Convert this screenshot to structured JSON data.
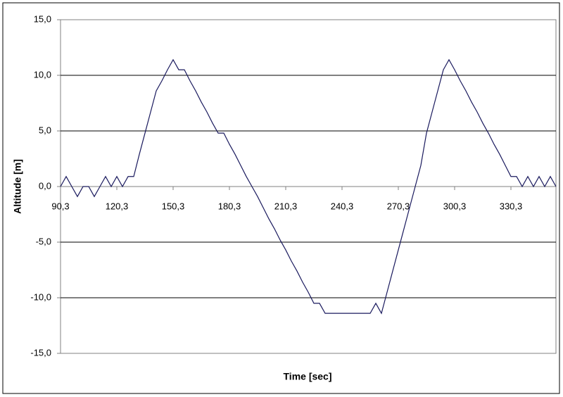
{
  "chart_data": {
    "type": "line",
    "x_label": "Time [sec]",
    "y_label": "Altitude [m]",
    "color": "#1a1a5e",
    "x": [
      90.3,
      93.3,
      96.3,
      99.3,
      102.3,
      105.3,
      108.3,
      111.3,
      114.3,
      117.3,
      120.3,
      123.3,
      126.3,
      129.3,
      132.3,
      135.3,
      138.3,
      141.3,
      144.3,
      147.3,
      150.3,
      153.3,
      156.3,
      159.3,
      162.3,
      165.3,
      168.3,
      171.3,
      174.3,
      177.3,
      180.3,
      183.3,
      186.3,
      189.3,
      192.3,
      195.3,
      198.3,
      201.3,
      204.3,
      207.3,
      210.3,
      213.3,
      216.3,
      219.3,
      222.3,
      225.3,
      228.3,
      231.3,
      234.3,
      237.3,
      240.3,
      243.3,
      246.3,
      249.3,
      252.3,
      255.3,
      258.3,
      261.3,
      264.3,
      267.3,
      270.3,
      273.3,
      276.3,
      279.3,
      282.3,
      285.3,
      288.3,
      291.3,
      294.3,
      297.3,
      300.3,
      303.3,
      306.3,
      309.3,
      312.3,
      315.3,
      318.3,
      321.3,
      324.3,
      327.3,
      330.3,
      333.3,
      336.3,
      339.3,
      342.3,
      345.3,
      348.3,
      351.3,
      354.3
    ],
    "values": [
      0,
      0.9,
      0,
      -0.9,
      0,
      0,
      -0.9,
      0,
      0.9,
      0,
      0.9,
      0,
      0.9,
      0.9,
      2.9,
      4.8,
      6.7,
      8.6,
      9.5,
      10.5,
      11.4,
      10.5,
      10.5,
      9.5,
      8.6,
      7.6,
      6.7,
      5.7,
      4.8,
      4.8,
      3.8,
      2.9,
      1.9,
      0.9,
      0,
      -0.9,
      -1.9,
      -2.9,
      -3.8,
      -4.8,
      -5.7,
      -6.7,
      -7.6,
      -8.6,
      -9.5,
      -10.5,
      -10.5,
      -11.4,
      -11.4,
      -11.4,
      -11.4,
      -11.4,
      -11.4,
      -11.4,
      -11.4,
      -11.4,
      -10.5,
      -11.4,
      -9.5,
      -7.6,
      -5.7,
      -3.8,
      -1.9,
      0,
      1.9,
      4.8,
      6.7,
      8.6,
      10.5,
      11.4,
      10.5,
      9.5,
      8.6,
      7.6,
      6.7,
      5.7,
      4.8,
      3.8,
      2.9,
      1.9,
      0.9,
      0.9,
      0,
      0.9,
      0,
      0.9,
      0,
      0.9,
      0
    ],
    "xlim": [
      90.3,
      354.3
    ],
    "xticks": [
      {
        "value": 90.3,
        "label": "90,3"
      },
      {
        "value": 120.3,
        "label": "120,3"
      },
      {
        "value": 150.3,
        "label": "150,3"
      },
      {
        "value": 180.3,
        "label": "180,3"
      },
      {
        "value": 210.3,
        "label": "210,3"
      },
      {
        "value": 240.3,
        "label": "240,3"
      },
      {
        "value": 270.3,
        "label": "270,3"
      },
      {
        "value": 300.3,
        "label": "300,3"
      },
      {
        "value": 330.3,
        "label": "330,3"
      }
    ],
    "ylim": [
      -15,
      15
    ],
    "yticks": [
      {
        "value": -15,
        "label": "-15,0"
      },
      {
        "value": -10,
        "label": "-10,0"
      },
      {
        "value": -5,
        "label": "-5,0"
      },
      {
        "value": 0,
        "label": "0,0"
      },
      {
        "value": 5,
        "label": "5,0"
      },
      {
        "value": 10,
        "label": "10,0"
      },
      {
        "value": 15,
        "label": "15,0"
      }
    ],
    "grid": true
  }
}
